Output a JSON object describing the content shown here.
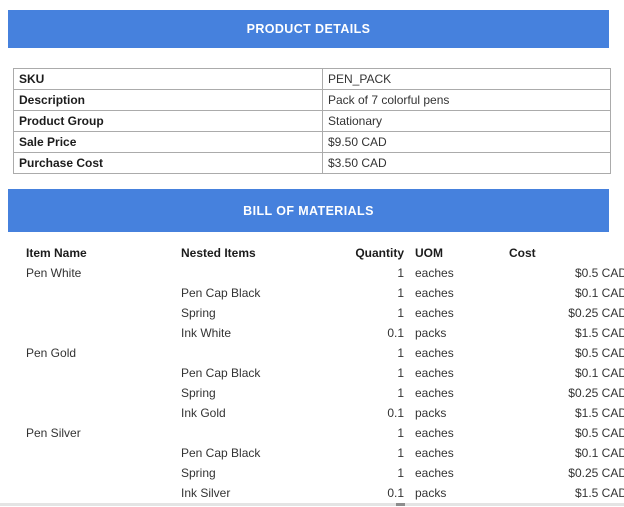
{
  "colors": {
    "section_header_bg": "#4681dd",
    "section_header_text": "#ffffff",
    "table_border": "#ababab",
    "body_text": "#333333",
    "label_text": "#1c1c1c"
  },
  "product_details": {
    "title": "PRODUCT DETAILS",
    "rows": [
      {
        "label": "SKU",
        "value": "PEN_PACK"
      },
      {
        "label": "Description",
        "value": "Pack of 7 colorful pens"
      },
      {
        "label": "Product Group",
        "value": "Stationary"
      },
      {
        "label": "Sale Price",
        "value": "$9.50 CAD"
      },
      {
        "label": "Purchase Cost",
        "value": "$3.50 CAD"
      }
    ]
  },
  "bill_of_materials": {
    "title": "BILL OF MATERIALS",
    "columns": [
      "Item Name",
      "Nested Items",
      "Quantity",
      "UOM",
      "Cost"
    ],
    "rows": [
      {
        "item": "Pen White",
        "nested": "",
        "qty": "1",
        "uom": "eaches",
        "cost": "$0.5 CAD"
      },
      {
        "item": "",
        "nested": "Pen Cap Black",
        "qty": "1",
        "uom": "eaches",
        "cost": "$0.1 CAD"
      },
      {
        "item": "",
        "nested": "Spring",
        "qty": "1",
        "uom": "eaches",
        "cost": "$0.25 CAD"
      },
      {
        "item": "",
        "nested": "Ink White",
        "qty": "0.1",
        "uom": "packs",
        "cost": "$1.5 CAD"
      },
      {
        "item": "Pen Gold",
        "nested": "",
        "qty": "1",
        "uom": "eaches",
        "cost": "$0.5 CAD"
      },
      {
        "item": "",
        "nested": "Pen Cap Black",
        "qty": "1",
        "uom": "eaches",
        "cost": "$0.1 CAD"
      },
      {
        "item": "",
        "nested": "Spring",
        "qty": "1",
        "uom": "eaches",
        "cost": "$0.25 CAD"
      },
      {
        "item": "",
        "nested": "Ink Gold",
        "qty": "0.1",
        "uom": "packs",
        "cost": "$1.5 CAD"
      },
      {
        "item": "Pen Silver",
        "nested": "",
        "qty": "1",
        "uom": "eaches",
        "cost": "$0.5 CAD"
      },
      {
        "item": "",
        "nested": "Pen Cap Black",
        "qty": "1",
        "uom": "eaches",
        "cost": "$0.1 CAD"
      },
      {
        "item": "",
        "nested": "Spring",
        "qty": "1",
        "uom": "eaches",
        "cost": "$0.25 CAD"
      },
      {
        "item": "",
        "nested": "Ink Silver",
        "qty": "0.1",
        "uom": "packs",
        "cost": "$1.5 CAD"
      }
    ]
  }
}
